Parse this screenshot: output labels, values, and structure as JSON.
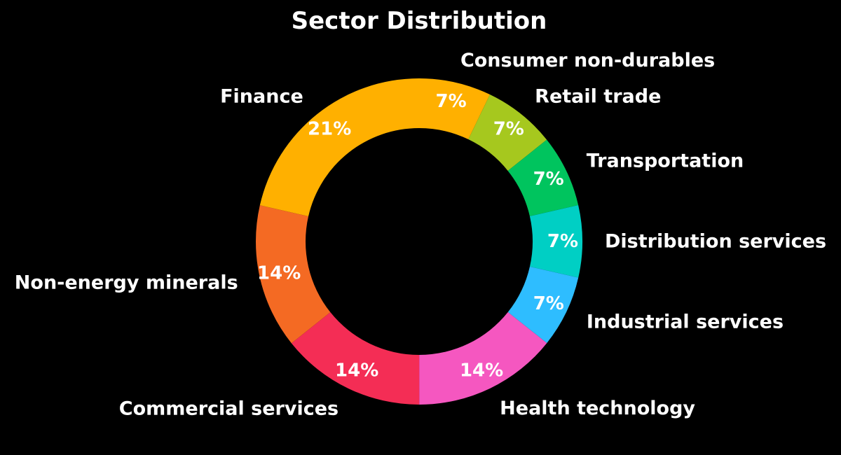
{
  "chart_data": {
    "type": "pie",
    "title": "Sector Distribution",
    "categories": [
      "Consumer non-durables",
      "Retail trade",
      "Transportation",
      "Distribution services",
      "Industrial services",
      "Health technology",
      "Commercial services",
      "Non-energy minerals",
      "Finance"
    ],
    "values": [
      7.14,
      7.14,
      7.14,
      7.14,
      7.14,
      14.29,
      14.29,
      14.29,
      21.43
    ],
    "value_labels": [
      "7%",
      "7%",
      "7%",
      "7%",
      "7%",
      "14%",
      "14%",
      "14%",
      "21%"
    ],
    "colors": [
      "#FFB000",
      "#A6C81E",
      "#00C45E",
      "#00CFC4",
      "#2EBDFF",
      "#F557C0",
      "#F42D55",
      "#F46A23",
      "#FFB000"
    ],
    "donut": true,
    "start": "top",
    "direction": "clockwise",
    "legend": "none",
    "background": "#000000"
  }
}
